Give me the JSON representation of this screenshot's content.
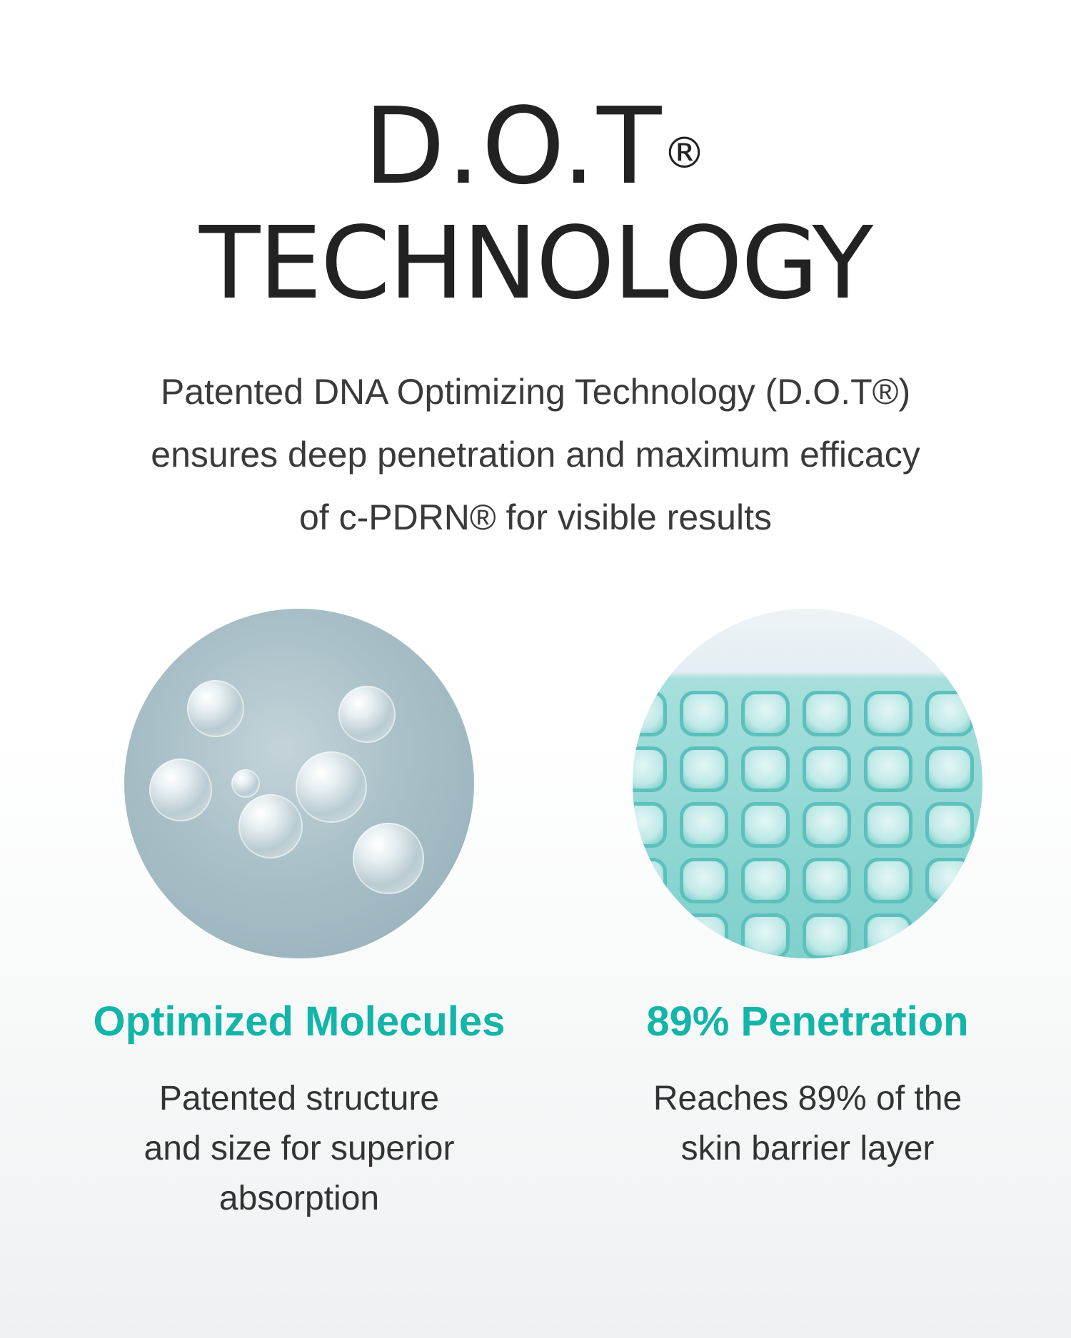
{
  "header": {
    "title_line1": "D.O.T",
    "registered_mark": "®",
    "title_line2": "TECHNOLOGY"
  },
  "intro": {
    "line1": "Patented DNA Optimizing Technology (D.O.T®)",
    "line2": "ensures deep penetration and maximum efficacy",
    "line3": "of c-PDRN® for visible results"
  },
  "features": [
    {
      "heading": "Optimized Molecules",
      "lines": [
        "Patented structure",
        "and size for superior",
        "absorption"
      ],
      "image_icon": "molecule-image"
    },
    {
      "heading": "89% Penetration",
      "lines": [
        "Reaches 89% of the",
        "skin barrier layer"
      ],
      "image_icon": "skin-cells-image"
    }
  ],
  "colors": {
    "accent": "#12b5a8",
    "text": "#222222"
  }
}
